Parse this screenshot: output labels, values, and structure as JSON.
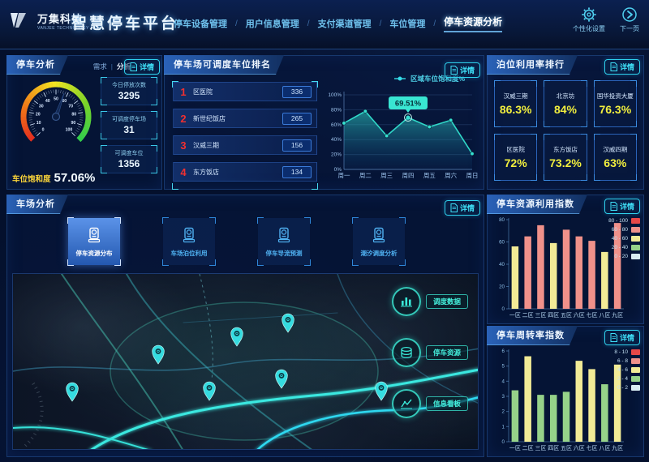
{
  "header": {
    "logo_text": "万集科技",
    "logo_sub": "VANJEE TECHNOLOGY",
    "title": "智慧停车平台",
    "nav": [
      {
        "label": "停车设备管理",
        "active": false
      },
      {
        "label": "用户信息管理",
        "active": false
      },
      {
        "label": "支付渠道管理",
        "active": false
      },
      {
        "label": "车位管理",
        "active": false
      },
      {
        "label": "停车资源分析",
        "active": true
      }
    ],
    "actions": [
      {
        "label": "个性化设置",
        "icon": "gear-icon"
      },
      {
        "label": "下一页",
        "icon": "next-page-icon"
      }
    ]
  },
  "detail_label": "详情",
  "parking_analysis": {
    "title": "停车分析",
    "tabs": [
      {
        "label": "需求",
        "active": false
      },
      {
        "label": "分析",
        "active": true
      }
    ],
    "gauge_caption": "车位饱和度",
    "gauge_value": "57.06%",
    "stats": [
      {
        "label": "今日停放次数",
        "value": "3295"
      },
      {
        "label": "可调度停车场",
        "value": "31"
      },
      {
        "label": "可调度车位",
        "value": "1356"
      }
    ]
  },
  "dispatch_rank": {
    "title": "停车场可调度车位排名",
    "items": [
      {
        "rank": "1",
        "name": "区医院",
        "value": "336"
      },
      {
        "rank": "2",
        "name": "新世纪饭店",
        "value": "265"
      },
      {
        "rank": "3",
        "name": "汉威三期",
        "value": "156"
      },
      {
        "rank": "4",
        "name": "东方饭店",
        "value": "134"
      }
    ]
  },
  "bay_utilization": {
    "title": "泊位利用率排行",
    "items": [
      {
        "name": "汉威三期",
        "percent": "86.3%"
      },
      {
        "name": "北京坊",
        "percent": "84%"
      },
      {
        "name": "国华投资大厦",
        "percent": "76.3%"
      },
      {
        "name": "区医院",
        "percent": "72%"
      },
      {
        "name": "东方饭店",
        "percent": "73.2%"
      },
      {
        "name": "汉威四期",
        "percent": "63%"
      }
    ]
  },
  "lot_analysis": {
    "title": "车场分析",
    "tabs": [
      {
        "label": "停车资源分布",
        "active": true
      },
      {
        "label": "车场泊位利用",
        "active": false
      },
      {
        "label": "停车导流预测",
        "active": false
      },
      {
        "label": "潮汐调度分析",
        "active": false
      }
    ],
    "map_buttons": [
      {
        "label": "调度数据",
        "icon": "dispatch-data-icon"
      },
      {
        "label": "停车资源",
        "icon": "parking-resource-icon"
      },
      {
        "label": "信息看板",
        "icon": "info-board-icon"
      }
    ]
  },
  "chart_data": [
    {
      "type": "area",
      "title": "区域车位饱和度%",
      "x": [
        "周一",
        "周二",
        "周三",
        "周四",
        "周五",
        "周六",
        "周日"
      ],
      "values": [
        62,
        78,
        45,
        69.51,
        57,
        66,
        21
      ],
      "highlight_index": 3,
      "tooltip": "69.51%",
      "ylim": [
        0,
        100
      ],
      "yticks": [
        "0%",
        "20%",
        "40%",
        "60%",
        "80%",
        "100%"
      ],
      "legend_position": "top-center",
      "grid": true,
      "line_color": "#30d8c8"
    },
    {
      "type": "gauge",
      "title": "车位饱和度",
      "value": 57.06,
      "min": 0,
      "max": 100,
      "tick_step": 10
    },
    {
      "type": "bar",
      "title": "停车资源利用指数",
      "categories": [
        "一区",
        "二区",
        "三区",
        "四区",
        "五区",
        "六区",
        "七区",
        "八区",
        "九区"
      ],
      "values": [
        56,
        65,
        75,
        59,
        71,
        65,
        61,
        51,
        77
      ],
      "ylim": [
        0,
        80
      ],
      "yticks": [
        0,
        20,
        40,
        60,
        80
      ],
      "legend": [
        {
          "label": "80 - 100",
          "color": "#e84848"
        },
        {
          "label": "60 - 80",
          "color": "#f0918a"
        },
        {
          "label": "40 - 60",
          "color": "#f2eb96"
        },
        {
          "label": "20 - 40",
          "color": "#96d289"
        },
        {
          "label": "0 - 20",
          "color": "#d8ecf2"
        }
      ],
      "color_bins": [
        [
          60,
          "#f0918a"
        ],
        [
          40,
          "#f2eb96"
        ],
        [
          0,
          "#96d289"
        ]
      ]
    },
    {
      "type": "bar",
      "title": "停车周转率指数",
      "categories": [
        "一区",
        "二区",
        "三区",
        "四区",
        "五区",
        "六区",
        "七区",
        "八区",
        "九区"
      ],
      "values": [
        3.4,
        5.65,
        3.1,
        3.1,
        3.3,
        5.35,
        4.8,
        3.8,
        5.1
      ],
      "ylim": [
        0,
        6
      ],
      "yticks": [
        0,
        1,
        2,
        3,
        4,
        5,
        6
      ],
      "legend": [
        {
          "label": "8 - 10",
          "color": "#e84848"
        },
        {
          "label": "6 - 8",
          "color": "#f0918a"
        },
        {
          "label": "4 - 6",
          "color": "#f2eb96"
        },
        {
          "label": "2 - 4",
          "color": "#96d289"
        },
        {
          "label": "0 - 2",
          "color": "#d8ecf2"
        }
      ],
      "color_bins": [
        [
          4,
          "#f2eb96"
        ],
        [
          0,
          "#96d289"
        ]
      ]
    }
  ],
  "colors": {
    "accent_teal": "#35dce0",
    "accent_blue": "#2a62b8",
    "rank_red": "#f03030",
    "percent_yellow": "#f2ef3e",
    "background": "#04102c"
  }
}
